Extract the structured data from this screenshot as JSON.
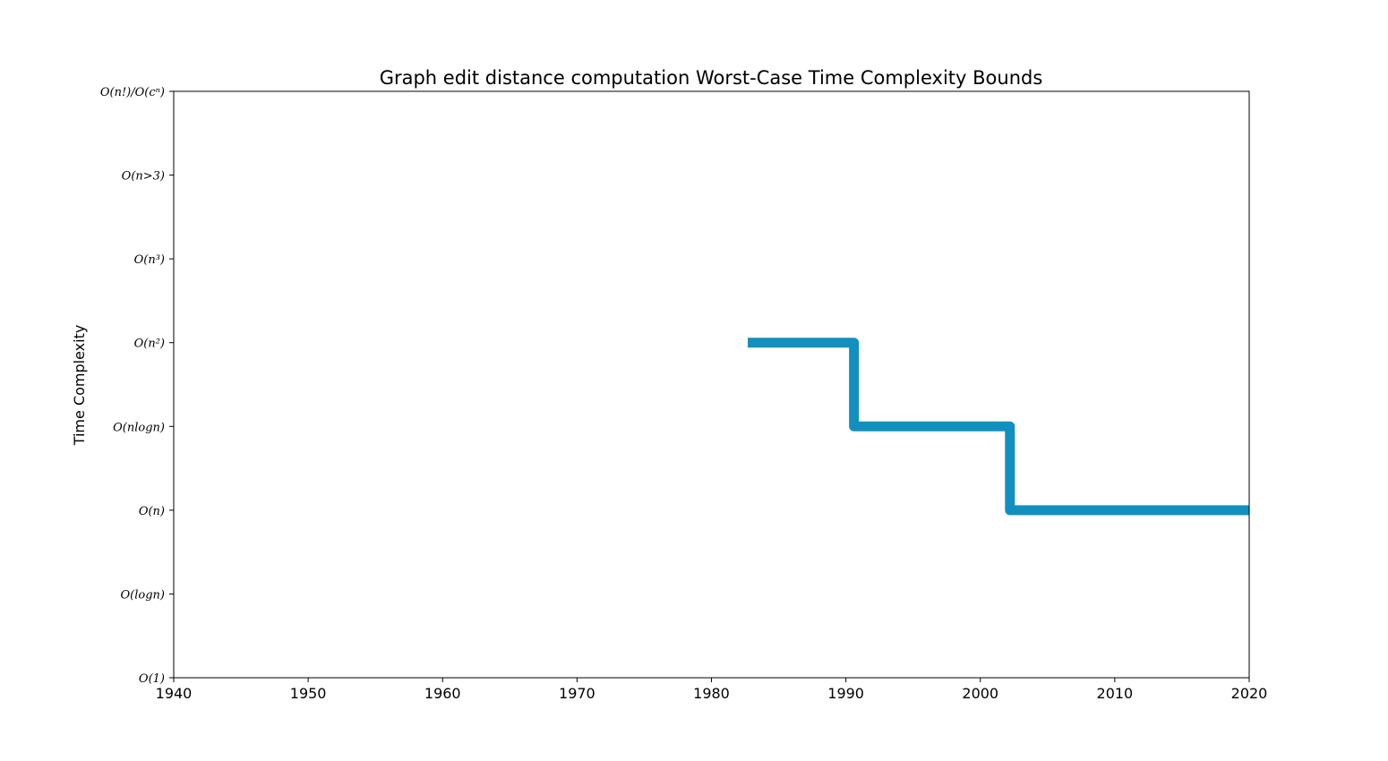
{
  "chart_data": {
    "type": "line",
    "title": "Graph edit distance computation Worst-Case Time Complexity Bounds",
    "xlabel": "",
    "ylabel": "Time Complexity",
    "xlim": [
      1940,
      2020
    ],
    "xticks": [
      1940,
      1950,
      1960,
      1970,
      1980,
      1990,
      2000,
      2010,
      2020
    ],
    "yticks": [
      {
        "value": 0,
        "label": "O(1)"
      },
      {
        "value": 1,
        "label": "O(logn)"
      },
      {
        "value": 2,
        "label": "O(n)"
      },
      {
        "value": 3,
        "label": "O(nlogn)"
      },
      {
        "value": 4,
        "label": "O(n²)"
      },
      {
        "value": 5,
        "label": "O(n³)"
      },
      {
        "value": 6,
        "label": "O(n>3)"
      },
      {
        "value": 7,
        "label": "O(n!)/O(cⁿ)"
      }
    ],
    "ylim": [
      0,
      7
    ],
    "grid": false,
    "series": [
      {
        "drawstyle": "steps-post",
        "color": "#1190bf",
        "x": [
          1982.7,
          1990.6,
          2002.2,
          2020
        ],
        "y": [
          4,
          3,
          2,
          2
        ]
      }
    ]
  }
}
